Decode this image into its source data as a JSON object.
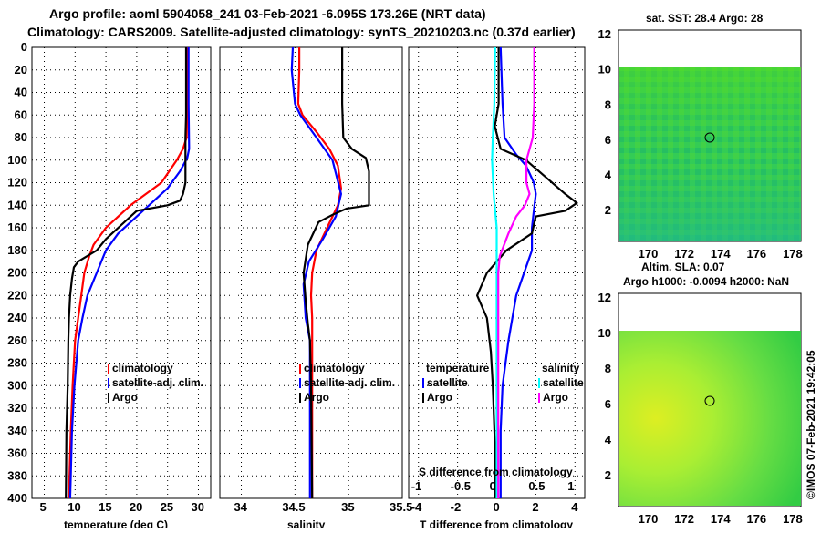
{
  "title": {
    "line1": "Argo profile: aoml 5904058_241 03-Feb-2021 -6.095S 173.26E (NRT data)",
    "line2": "Climatology: CARS2009. Satellite-adjusted climatology: synTS_20210203.nc (0.37d earlier)"
  },
  "depth_ticks": [
    "0",
    "20",
    "40",
    "60",
    "80",
    "100",
    "120",
    "140",
    "160",
    "180",
    "200",
    "220",
    "240",
    "260",
    "280",
    "300",
    "320",
    "340",
    "360",
    "380",
    "400"
  ],
  "colors": {
    "climatology": "#ff0000",
    "satellite": "#0000ff",
    "argo": "#000000",
    "sat_sal": "#00ffff",
    "argo_sal": "#ff00ff"
  },
  "panels": {
    "temperature": {
      "xlabel": "temperature (deg C)",
      "xticks": [
        "5",
        "10",
        "15",
        "20",
        "25",
        "30"
      ],
      "legend": {
        "climatology": "climatology",
        "satellite": "satellite-adj. clim.",
        "argo": "Argo"
      }
    },
    "salinity": {
      "xlabel": "salinity",
      "xticks": [
        "34",
        "34.5",
        "35",
        "35.5"
      ],
      "legend": {
        "climatology": "climatology",
        "satellite": "satellite-adj. clim.",
        "argo": "Argo"
      }
    },
    "difference": {
      "xlabel": "T difference from climatology",
      "xlabel_top": "S difference from climatology",
      "xticks": [
        "-4",
        "-2",
        "0",
        "2",
        "4"
      ],
      "xticks_top": [
        "-1",
        "-0.5",
        "0",
        "0.5",
        "1"
      ],
      "legend": {
        "temperature": "temperature",
        "t_satellite": "satellite",
        "t_argo": "Argo",
        "salinity": "salinity",
        "s_satellite": "satellite",
        "s_argo": "Argo"
      }
    }
  },
  "maps": {
    "sst": {
      "title": "sat. SST: 28.4 Argo: 28",
      "xticks": [
        "170",
        "172",
        "174",
        "176",
        "178"
      ],
      "yticks": [
        "2",
        "4",
        "6",
        "8",
        "10",
        "12"
      ]
    },
    "sla": {
      "title1": "Altim. SLA: 0.07",
      "title2": "Argo h1000: -0.0094 h2000: NaN",
      "xticks": [
        "170",
        "172",
        "174",
        "176",
        "178"
      ],
      "yticks": [
        "2",
        "4",
        "6",
        "8",
        "10",
        "12"
      ]
    }
  },
  "watermark": "©IMOS 07-Feb-2021 19:42:05",
  "chart_data": [
    {
      "type": "line",
      "title": "temperature",
      "xlabel": "temperature (deg C)",
      "ylabel": "depth",
      "xlim": [
        3,
        32
      ],
      "ylim": [
        400,
        0
      ],
      "series": [
        {
          "name": "climatology",
          "points": [
            [
              28.2,
              0
            ],
            [
              28.2,
              50
            ],
            [
              28.1,
              80
            ],
            [
              27.5,
              90
            ],
            [
              26.5,
              100
            ],
            [
              24,
              120
            ],
            [
              19,
              140
            ],
            [
              15,
              160
            ],
            [
              13,
              175
            ],
            [
              12.3,
              185
            ],
            [
              11.5,
              200
            ],
            [
              11,
              220
            ],
            [
              10.5,
              240
            ],
            [
              10,
              260
            ],
            [
              9.6,
              300
            ],
            [
              9.3,
              340
            ],
            [
              9.1,
              380
            ],
            [
              9,
              400
            ]
          ]
        },
        {
          "name": "satellite-adj. clim.",
          "points": [
            [
              28.4,
              0
            ],
            [
              28.4,
              50
            ],
            [
              28.5,
              90
            ],
            [
              28.2,
              98
            ],
            [
              27,
              110
            ],
            [
              25,
              125
            ],
            [
              21,
              145
            ],
            [
              17,
              165
            ],
            [
              15,
              180
            ],
            [
              13.5,
              200
            ],
            [
              12,
              220
            ],
            [
              11.2,
              240
            ],
            [
              10.5,
              260
            ],
            [
              9.9,
              300
            ],
            [
              9.5,
              340
            ],
            [
              9.3,
              380
            ],
            [
              9.2,
              400
            ]
          ]
        },
        {
          "name": "Argo",
          "points": [
            [
              28.0,
              0
            ],
            [
              28.0,
              60
            ],
            [
              27.9,
              80
            ],
            [
              27.9,
              120
            ],
            [
              27.5,
              130
            ],
            [
              27,
              136
            ],
            [
              25,
              140
            ],
            [
              20,
              145
            ],
            [
              17,
              160
            ],
            [
              15,
              170
            ],
            [
              13.5,
              180
            ],
            [
              12,
              185
            ],
            [
              10.5,
              190
            ],
            [
              9.8,
              195
            ],
            [
              9.5,
              205
            ],
            [
              9.2,
              220
            ],
            [
              9,
              240
            ],
            [
              8.9,
              260
            ],
            [
              8.8,
              300
            ],
            [
              8.6,
              340
            ],
            [
              8.5,
              400
            ]
          ]
        }
      ]
    },
    {
      "type": "line",
      "title": "salinity",
      "xlabel": "salinity",
      "ylabel": "depth",
      "xlim": [
        33.8,
        35.5
      ],
      "ylim": [
        400,
        0
      ],
      "series": [
        {
          "name": "climatology",
          "points": [
            [
              34.54,
              0
            ],
            [
              34.54,
              20
            ],
            [
              34.53,
              50
            ],
            [
              34.57,
              60
            ],
            [
              34.7,
              75
            ],
            [
              34.82,
              90
            ],
            [
              34.9,
              105
            ],
            [
              34.93,
              125
            ],
            [
              34.9,
              140
            ],
            [
              34.8,
              160
            ],
            [
              34.7,
              180
            ],
            [
              34.66,
              200
            ],
            [
              34.65,
              220
            ],
            [
              34.66,
              240
            ],
            [
              34.66,
              300
            ],
            [
              34.66,
              400
            ]
          ]
        },
        {
          "name": "satellite-adj. clim.",
          "points": [
            [
              34.48,
              0
            ],
            [
              34.47,
              20
            ],
            [
              34.5,
              50
            ],
            [
              34.55,
              60
            ],
            [
              34.7,
              80
            ],
            [
              34.85,
              100
            ],
            [
              34.93,
              130
            ],
            [
              34.88,
              150
            ],
            [
              34.76,
              170
            ],
            [
              34.63,
              190
            ],
            [
              34.58,
              210
            ],
            [
              34.6,
              240
            ],
            [
              34.64,
              260
            ],
            [
              34.64,
              300
            ],
            [
              34.64,
              400
            ]
          ]
        },
        {
          "name": "Argo",
          "points": [
            [
              34.94,
              0
            ],
            [
              34.94,
              50
            ],
            [
              34.95,
              80
            ],
            [
              35.03,
              90
            ],
            [
              35.16,
              98
            ],
            [
              35.19,
              110
            ],
            [
              35.19,
              140
            ],
            [
              34.98,
              143
            ],
            [
              34.86,
              148
            ],
            [
              34.72,
              155
            ],
            [
              34.62,
              175
            ],
            [
              34.58,
              200
            ],
            [
              34.6,
              225
            ],
            [
              34.62,
              245
            ],
            [
              34.64,
              260
            ],
            [
              34.65,
              300
            ],
            [
              34.66,
              400
            ]
          ]
        }
      ]
    },
    {
      "type": "line",
      "title": "difference from climatology",
      "xlabel": "T difference from climatology",
      "xlabel_top": "S difference from climatology",
      "ylabel": "depth",
      "xlim": [
        -4.5,
        4.5
      ],
      "ylim": [
        400,
        0
      ],
      "xlim_top": [
        -1.125,
        1.125
      ],
      "series": [
        {
          "name": "temperature satellite",
          "points": [
            [
              0.2,
              0
            ],
            [
              0.3,
              50
            ],
            [
              0.4,
              80
            ],
            [
              1.0,
              95
            ],
            [
              1.5,
              105
            ],
            [
              1.9,
              120
            ],
            [
              2.0,
              130
            ],
            [
              1.9,
              145
            ],
            [
              1.8,
              160
            ],
            [
              1.8,
              180
            ],
            [
              1.4,
              200
            ],
            [
              1.0,
              220
            ],
            [
              0.6,
              260
            ],
            [
              0.3,
              300
            ],
            [
              0.2,
              340
            ],
            [
              0.2,
              400
            ]
          ]
        },
        {
          "name": "temperature Argo",
          "points": [
            [
              0.1,
              0
            ],
            [
              0.1,
              50
            ],
            [
              -0.1,
              70
            ],
            [
              0.2,
              90
            ],
            [
              1.5,
              100
            ],
            [
              2.5,
              115
            ],
            [
              3.5,
              130
            ],
            [
              4.1,
              138
            ],
            [
              3.5,
              145
            ],
            [
              2.0,
              150
            ],
            [
              1.8,
              165
            ],
            [
              0.5,
              180
            ],
            [
              -0.5,
              200
            ],
            [
              -1.0,
              220
            ],
            [
              -0.5,
              240
            ],
            [
              -0.3,
              270
            ],
            [
              -0.2,
              300
            ],
            [
              -0.1,
              350
            ],
            [
              -0.1,
              400
            ]
          ]
        },
        {
          "name": "salinity satellite",
          "points": [
            [
              -0.02,
              0
            ],
            [
              -0.03,
              50
            ],
            [
              -0.05,
              80
            ],
            [
              -0.06,
              100
            ],
            [
              -0.04,
              130
            ],
            [
              0.0,
              160
            ],
            [
              0.0,
              200
            ],
            [
              0.0,
              250
            ],
            [
              0.0,
              300
            ],
            [
              0.0,
              400
            ]
          ]
        },
        {
          "name": "salinity Argo",
          "points": [
            [
              0.48,
              0
            ],
            [
              0.48,
              50
            ],
            [
              0.46,
              80
            ],
            [
              0.38,
              100
            ],
            [
              0.38,
              120
            ],
            [
              0.42,
              130
            ],
            [
              0.36,
              140
            ],
            [
              0.25,
              150
            ],
            [
              0.15,
              165
            ],
            [
              0.04,
              185
            ],
            [
              0.02,
              200
            ],
            [
              0.02,
              250
            ],
            [
              0.02,
              300
            ],
            [
              0.02,
              400
            ]
          ]
        }
      ]
    }
  ]
}
